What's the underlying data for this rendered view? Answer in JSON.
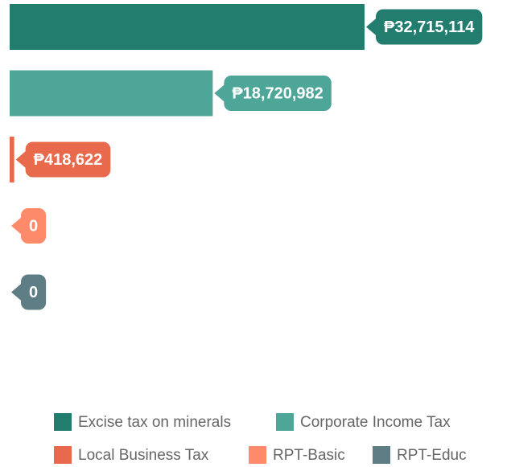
{
  "chart_data": {
    "type": "bar",
    "series": [
      {
        "name": "Excise tax on minerals",
        "color": "#237d6f",
        "values": [
          32715114
        ],
        "value_labels": [
          "₱32,715,114"
        ]
      },
      {
        "name": "Corporate Income Tax",
        "color": "#4ea699",
        "values": [
          18720982
        ],
        "value_labels": [
          "₱18,720,982"
        ]
      },
      {
        "name": "Local Business Tax",
        "color": "#e8694b",
        "values": [
          418622
        ],
        "value_labels": [
          "₱418,622"
        ]
      },
      {
        "name": "RPT-Basic",
        "color": "#fd8a6a",
        "values": [
          0
        ],
        "value_labels": [
          "0"
        ]
      },
      {
        "name": "RPT-Educ",
        "color": "#5e7d85",
        "values": [
          0
        ],
        "value_labels": [
          "0"
        ]
      }
    ],
    "legend": "bottom"
  }
}
